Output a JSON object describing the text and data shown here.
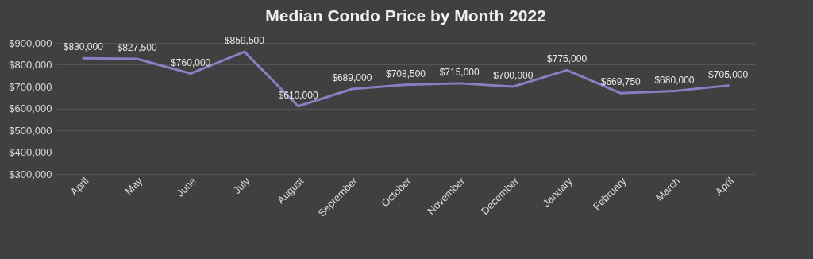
{
  "chart_data": {
    "type": "line",
    "title": "Median Condo Price by Month 2022",
    "categories": [
      "April",
      "May",
      "June",
      "July",
      "August",
      "September",
      "October",
      "November",
      "December",
      "January",
      "February",
      "March",
      "April"
    ],
    "series": [
      {
        "color": "#8e7cc3",
        "values": [
          830000,
          827500,
          760000,
          859500,
          610000,
          689000,
          708500,
          715000,
          700000,
          775000,
          669750,
          680000,
          705000
        ],
        "value_labels": [
          "$830,000",
          "$827,500",
          "$760,000",
          "$859,500",
          "$610,000",
          "$689,000",
          "$708,500",
          "$715,000",
          "$700,000",
          "$775,000",
          "$669,750",
          "$680,000",
          "$705,000"
        ]
      }
    ],
    "ylim": [
      300000,
      900000
    ],
    "yticks": [
      {
        "value": 300000,
        "label": "$300,000"
      },
      {
        "value": 400000,
        "label": "$400,000"
      },
      {
        "value": 500000,
        "label": "$500,000"
      },
      {
        "value": 600000,
        "label": "$600,000"
      },
      {
        "value": 700000,
        "label": "$700,000"
      },
      {
        "value": 800000,
        "label": "$800,000"
      },
      {
        "value": 900000,
        "label": "$900,000"
      }
    ],
    "grid": "y",
    "legend": false
  }
}
